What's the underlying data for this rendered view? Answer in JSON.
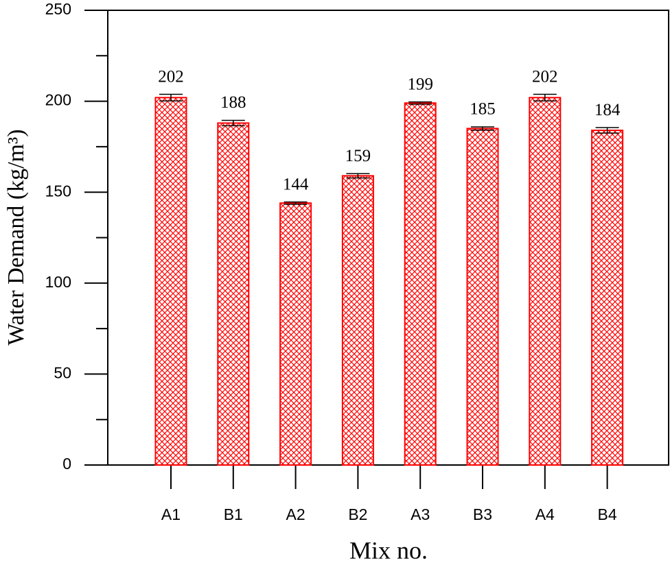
{
  "chart_data": {
    "type": "bar",
    "y_label": "Water Demand (kg/m³)",
    "x_label": "Mix no.",
    "categories": [
      "A1",
      "B1",
      "A2",
      "B2",
      "A3",
      "B3",
      "A4",
      "B4"
    ],
    "values": [
      202,
      188,
      144,
      159,
      199,
      185,
      202,
      184
    ],
    "errors": [
      1.8,
      1.5,
      0.6,
      1.2,
      0.6,
      0.9,
      1.8,
      1.5
    ],
    "color": "#ff0000",
    "ylim": [
      0,
      250
    ],
    "yticks": [
      0,
      50,
      100,
      150,
      200,
      250
    ],
    "minor_yticks": [
      25,
      75,
      125,
      175,
      225
    ]
  }
}
